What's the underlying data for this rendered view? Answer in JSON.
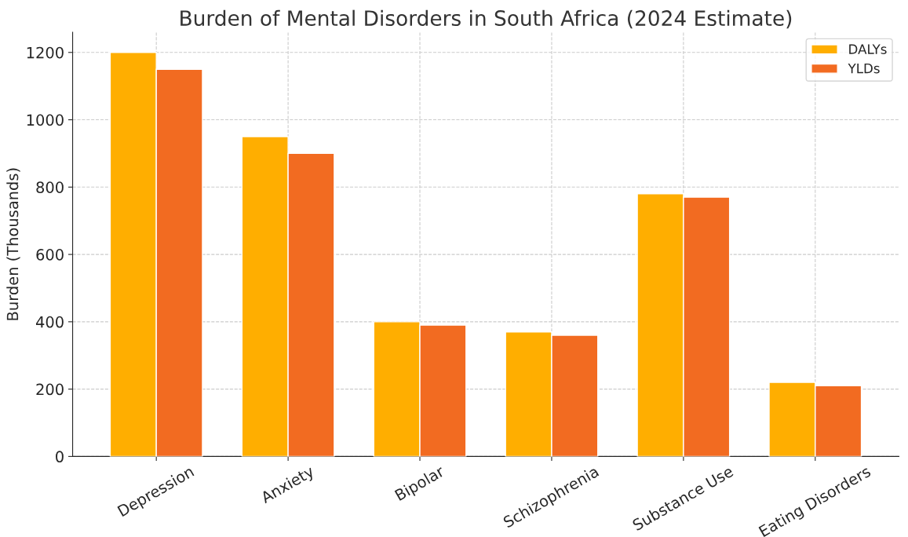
{
  "chart_data": {
    "type": "bar",
    "title": "Burden of Mental Disorders in South Africa (2024 Estimate)",
    "ylabel": "Burden (Thousands)",
    "categories": [
      "Depression",
      "Anxiety",
      "Bipolar",
      "Schizophrenia",
      "Substance Use",
      "Eating Disorders"
    ],
    "series": [
      {
        "name": "DALYs",
        "color": "#ffae00",
        "values": [
          1200,
          950,
          400,
          370,
          780,
          220
        ]
      },
      {
        "name": "YLDs",
        "color": "#f26b21",
        "values": [
          1150,
          900,
          390,
          360,
          770,
          210
        ]
      }
    ],
    "ylim": [
      0,
      1260
    ],
    "yticks": [
      0,
      200,
      400,
      600,
      800,
      1000,
      1200
    ],
    "grid": true,
    "legend": "top right"
  }
}
